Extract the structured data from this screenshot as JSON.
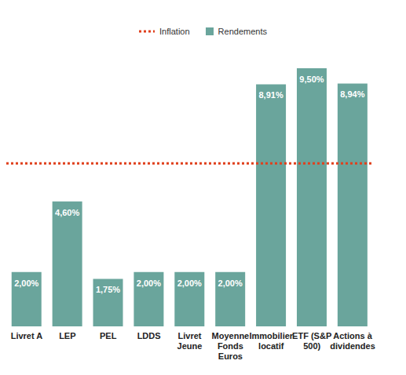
{
  "chart_data": {
    "type": "bar",
    "categories": [
      "Livret A",
      "LEP",
      "PEL",
      "LDDS",
      "Livret Jeune",
      "Moyenne Fonds Euros",
      "Immobilier locatif",
      "ETF (S&P 500)",
      "Actions à dividendes"
    ],
    "series": [
      {
        "name": "Inflation",
        "type": "reference_line",
        "line_style": "dotted",
        "color": "#e0401d",
        "value": 6.0
      },
      {
        "name": "Rendements",
        "type": "bar",
        "color": "#6aa59c",
        "values": [
          2.0,
          4.6,
          1.75,
          2.0,
          2.0,
          2.0,
          8.91,
          9.5,
          8.94
        ],
        "value_labels": [
          "2,00%",
          "4,60%",
          "1,75%",
          "2,00%",
          "2,00%",
          "2,00%",
          "8,91%",
          "9,50%",
          "8,94%"
        ]
      }
    ],
    "data_labels": true,
    "legend": "top",
    "tick_labels": "x"
  }
}
